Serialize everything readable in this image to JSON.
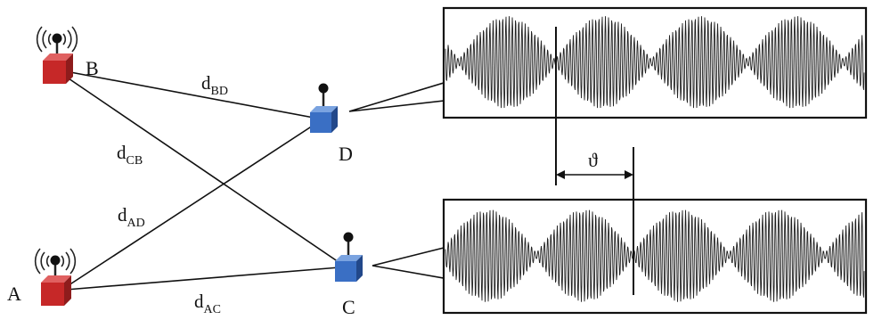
{
  "nodes": {
    "A": {
      "label": "A",
      "role": "transmitter",
      "color": "#c62828"
    },
    "B": {
      "label": "B",
      "role": "transmitter",
      "color": "#c62828"
    },
    "C": {
      "label": "C",
      "role": "receiver",
      "color": "#3a6fc4"
    },
    "D": {
      "label": "D",
      "role": "receiver",
      "color": "#3a6fc4"
    }
  },
  "links": [
    {
      "id": "BD",
      "main": "d",
      "sub": "BD"
    },
    {
      "id": "CB",
      "main": "d",
      "sub": "CB"
    },
    {
      "id": "AD",
      "main": "d",
      "sub": "AD"
    },
    {
      "id": "AC",
      "main": "d",
      "sub": "AC"
    }
  ],
  "phase_shift": {
    "symbol": "ϑ"
  },
  "icons": {
    "transmitter": "radio-waves-icon",
    "receiver": "antenna-icon"
  }
}
